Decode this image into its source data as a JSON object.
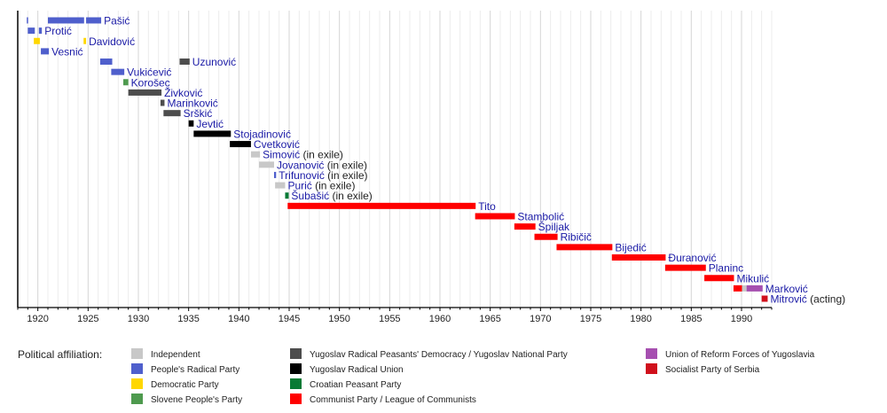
{
  "chart_data": {
    "type": "timeline",
    "xlim": [
      1918,
      1993
    ],
    "x_ticks": [
      "1920",
      "1925",
      "1930",
      "1935",
      "1940",
      "1945",
      "1950",
      "1955",
      "1960",
      "1965",
      "1970",
      "1975",
      "1980",
      "1985",
      "1990"
    ],
    "grid": true,
    "legend_title": "Political affiliation:",
    "legend_placement": "bottom",
    "parties": [
      {
        "key": "ind",
        "label": "Independent",
        "color": "#c8c8c8"
      },
      {
        "key": "nrs",
        "label": "People's Radical Party",
        "color": "#4f5fcc"
      },
      {
        "key": "dem",
        "label": "Democratic Party",
        "color": "#ffd700"
      },
      {
        "key": "sls",
        "label": "Slovene People's Party",
        "color": "#4e9a4e"
      },
      {
        "key": "jrsd",
        "label": "Yugoslav Radical Peasants' Democracy / Yugoslav National Party",
        "color": "#4d4d4d"
      },
      {
        "key": "jrz",
        "label": "Yugoslav Radical Union",
        "color": "#000000"
      },
      {
        "key": "hss",
        "label": "Croatian Peasant Party",
        "color": "#087a35"
      },
      {
        "key": "kpj",
        "label": "Communist Party / League of Communists",
        "color": "#ff0000"
      },
      {
        "key": "srsj",
        "label": "Union of Reform Forces of Yugoslavia",
        "color": "#a64fb0"
      },
      {
        "key": "sps",
        "label": "Socialist Party of Serbia",
        "color": "#d0101c"
      }
    ],
    "rows": [
      {
        "name": "Pašić",
        "suffix": "",
        "terms": [
          [
            1918.9,
            1919.0,
            "nrs"
          ],
          [
            1921.0,
            1924.6,
            "nrs"
          ],
          [
            1924.8,
            1926.3,
            "nrs"
          ]
        ]
      },
      {
        "name": "Protić",
        "suffix": "",
        "terms": [
          [
            1919.0,
            1919.7,
            "nrs"
          ],
          [
            1920.1,
            1920.4,
            "nrs"
          ]
        ]
      },
      {
        "name": "Davidović",
        "suffix": "",
        "terms": [
          [
            1919.6,
            1920.2,
            "dem"
          ],
          [
            1924.55,
            1924.8,
            "dem"
          ]
        ]
      },
      {
        "name": "Vesnić",
        "suffix": "",
        "terms": [
          [
            1920.3,
            1921.1,
            "nrs"
          ]
        ]
      },
      {
        "name": "Uzunović",
        "suffix": "",
        "terms": [
          [
            1926.2,
            1927.4,
            "nrs"
          ],
          [
            1934.1,
            1935.1,
            "jrsd"
          ]
        ]
      },
      {
        "name": "Vukićević",
        "suffix": "",
        "terms": [
          [
            1927.3,
            1928.6,
            "nrs"
          ]
        ]
      },
      {
        "name": "Korošec",
        "suffix": "",
        "terms": [
          [
            1928.5,
            1929.0,
            "sls"
          ]
        ]
      },
      {
        "name": "Živković",
        "suffix": "",
        "terms": [
          [
            1929.0,
            1932.3,
            "jrsd"
          ]
        ]
      },
      {
        "name": "Marinković",
        "suffix": "",
        "terms": [
          [
            1932.2,
            1932.6,
            "jrsd"
          ]
        ]
      },
      {
        "name": "Srškić",
        "suffix": "",
        "terms": [
          [
            1932.5,
            1934.2,
            "jrsd"
          ]
        ]
      },
      {
        "name": "Jevtić",
        "suffix": "",
        "terms": [
          [
            1935.0,
            1935.5,
            "jrz"
          ]
        ]
      },
      {
        "name": "Stojadinović",
        "suffix": "",
        "terms": [
          [
            1935.5,
            1939.2,
            "jrz"
          ]
        ]
      },
      {
        "name": "Cvetković",
        "suffix": "",
        "terms": [
          [
            1939.1,
            1941.2,
            "jrz"
          ]
        ]
      },
      {
        "name": "Simović",
        "suffix": "(in exile)",
        "terms": [
          [
            1941.2,
            1942.1,
            "ind"
          ]
        ]
      },
      {
        "name": "Jovanović",
        "suffix": "(in exile)",
        "terms": [
          [
            1942.0,
            1943.5,
            "ind"
          ]
        ]
      },
      {
        "name": "Trifunović",
        "suffix": "(in exile)",
        "terms": [
          [
            1943.5,
            1943.7,
            "nrs"
          ]
        ]
      },
      {
        "name": "Purić",
        "suffix": "(in exile)",
        "terms": [
          [
            1943.6,
            1944.6,
            "ind"
          ]
        ]
      },
      {
        "name": "Šubašić",
        "suffix": "(in exile)",
        "terms": [
          [
            1944.6,
            1944.95,
            "hss"
          ]
        ]
      },
      {
        "name": "Tito",
        "suffix": "",
        "terms": [
          [
            1944.85,
            1963.55,
            "kpj"
          ]
        ]
      },
      {
        "name": "Stambolić",
        "suffix": "",
        "terms": [
          [
            1963.5,
            1967.45,
            "kpj"
          ]
        ]
      },
      {
        "name": "Špiljak",
        "suffix": "",
        "terms": [
          [
            1967.4,
            1969.5,
            "kpj"
          ]
        ]
      },
      {
        "name": "Ribičič",
        "suffix": "",
        "terms": [
          [
            1969.4,
            1971.7,
            "kpj"
          ]
        ]
      },
      {
        "name": "Bijedić",
        "suffix": "",
        "terms": [
          [
            1971.6,
            1977.15,
            "kpj"
          ]
        ]
      },
      {
        "name": "Đuranović",
        "suffix": "",
        "terms": [
          [
            1977.1,
            1982.45,
            "kpj"
          ]
        ]
      },
      {
        "name": "Planinc",
        "suffix": "",
        "terms": [
          [
            1982.4,
            1986.45,
            "kpj"
          ]
        ]
      },
      {
        "name": "Mikulić",
        "suffix": "",
        "terms": [
          [
            1986.3,
            1989.25,
            "kpj"
          ]
        ]
      },
      {
        "name": "Marković",
        "suffix": "",
        "terms": [
          [
            1989.2,
            1990.05,
            "kpj"
          ],
          [
            1990.05,
            1990.5,
            "ind"
          ],
          [
            1990.5,
            1992.1,
            "srsj"
          ]
        ]
      },
      {
        "name": "Mitrović",
        "suffix": "(acting)",
        "terms": [
          [
            1992.0,
            1992.6,
            "sps"
          ]
        ]
      }
    ]
  }
}
